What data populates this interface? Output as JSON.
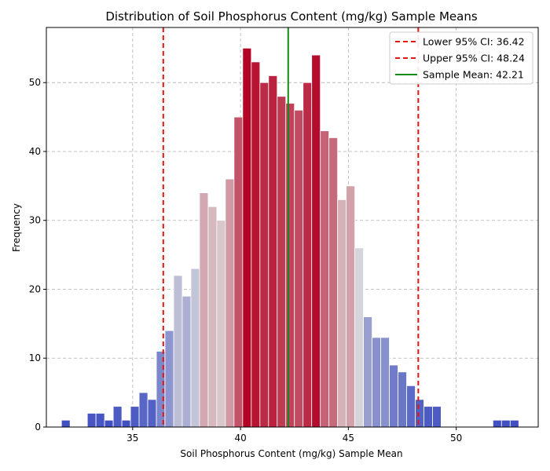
{
  "chart_data": {
    "type": "bar",
    "title": "Distribution of Soil Phosphorus Content (mg/kg) Sample Means",
    "xlabel": "Soil Phosphorus Content (mg/kg) Sample Mean",
    "ylabel": "Frequency",
    "xlim": [
      31.0,
      53.8
    ],
    "ylim": [
      0,
      58
    ],
    "xticks": [
      "35",
      "40",
      "45",
      "50"
    ],
    "xtick_values": [
      35,
      40,
      45,
      50
    ],
    "yticks": [
      "0",
      "10",
      "20",
      "30",
      "40",
      "50"
    ],
    "ytick_values": [
      0,
      10,
      20,
      30,
      40,
      50
    ],
    "grid": true,
    "legend_position": "top-right",
    "bin_start": 31.7,
    "bin_width": 0.4,
    "counts": [
      1,
      0,
      0,
      2,
      2,
      1,
      3,
      1,
      3,
      5,
      4,
      11,
      14,
      22,
      19,
      23,
      34,
      32,
      30,
      36,
      45,
      55,
      53,
      50,
      51,
      48,
      47,
      46,
      50,
      54,
      43,
      42,
      33,
      35,
      26,
      16,
      13,
      13,
      9,
      8,
      6,
      4,
      3,
      3,
      0,
      0,
      0,
      0,
      0,
      0,
      1,
      1,
      1
    ],
    "color_scale": [
      "#3b4cc0",
      "#dddcdc",
      "#b40426"
    ],
    "lines": [
      {
        "label": "Lower 95% CI: 36.42",
        "x": 36.42,
        "color": "#e8150f",
        "style": "dashed"
      },
      {
        "label": "Upper 95% CI: 48.24",
        "x": 48.24,
        "color": "#e8150f",
        "style": "dashed"
      },
      {
        "label": "Sample Mean: 42.21",
        "x": 42.21,
        "color": "#138a13",
        "style": "solid"
      }
    ]
  }
}
